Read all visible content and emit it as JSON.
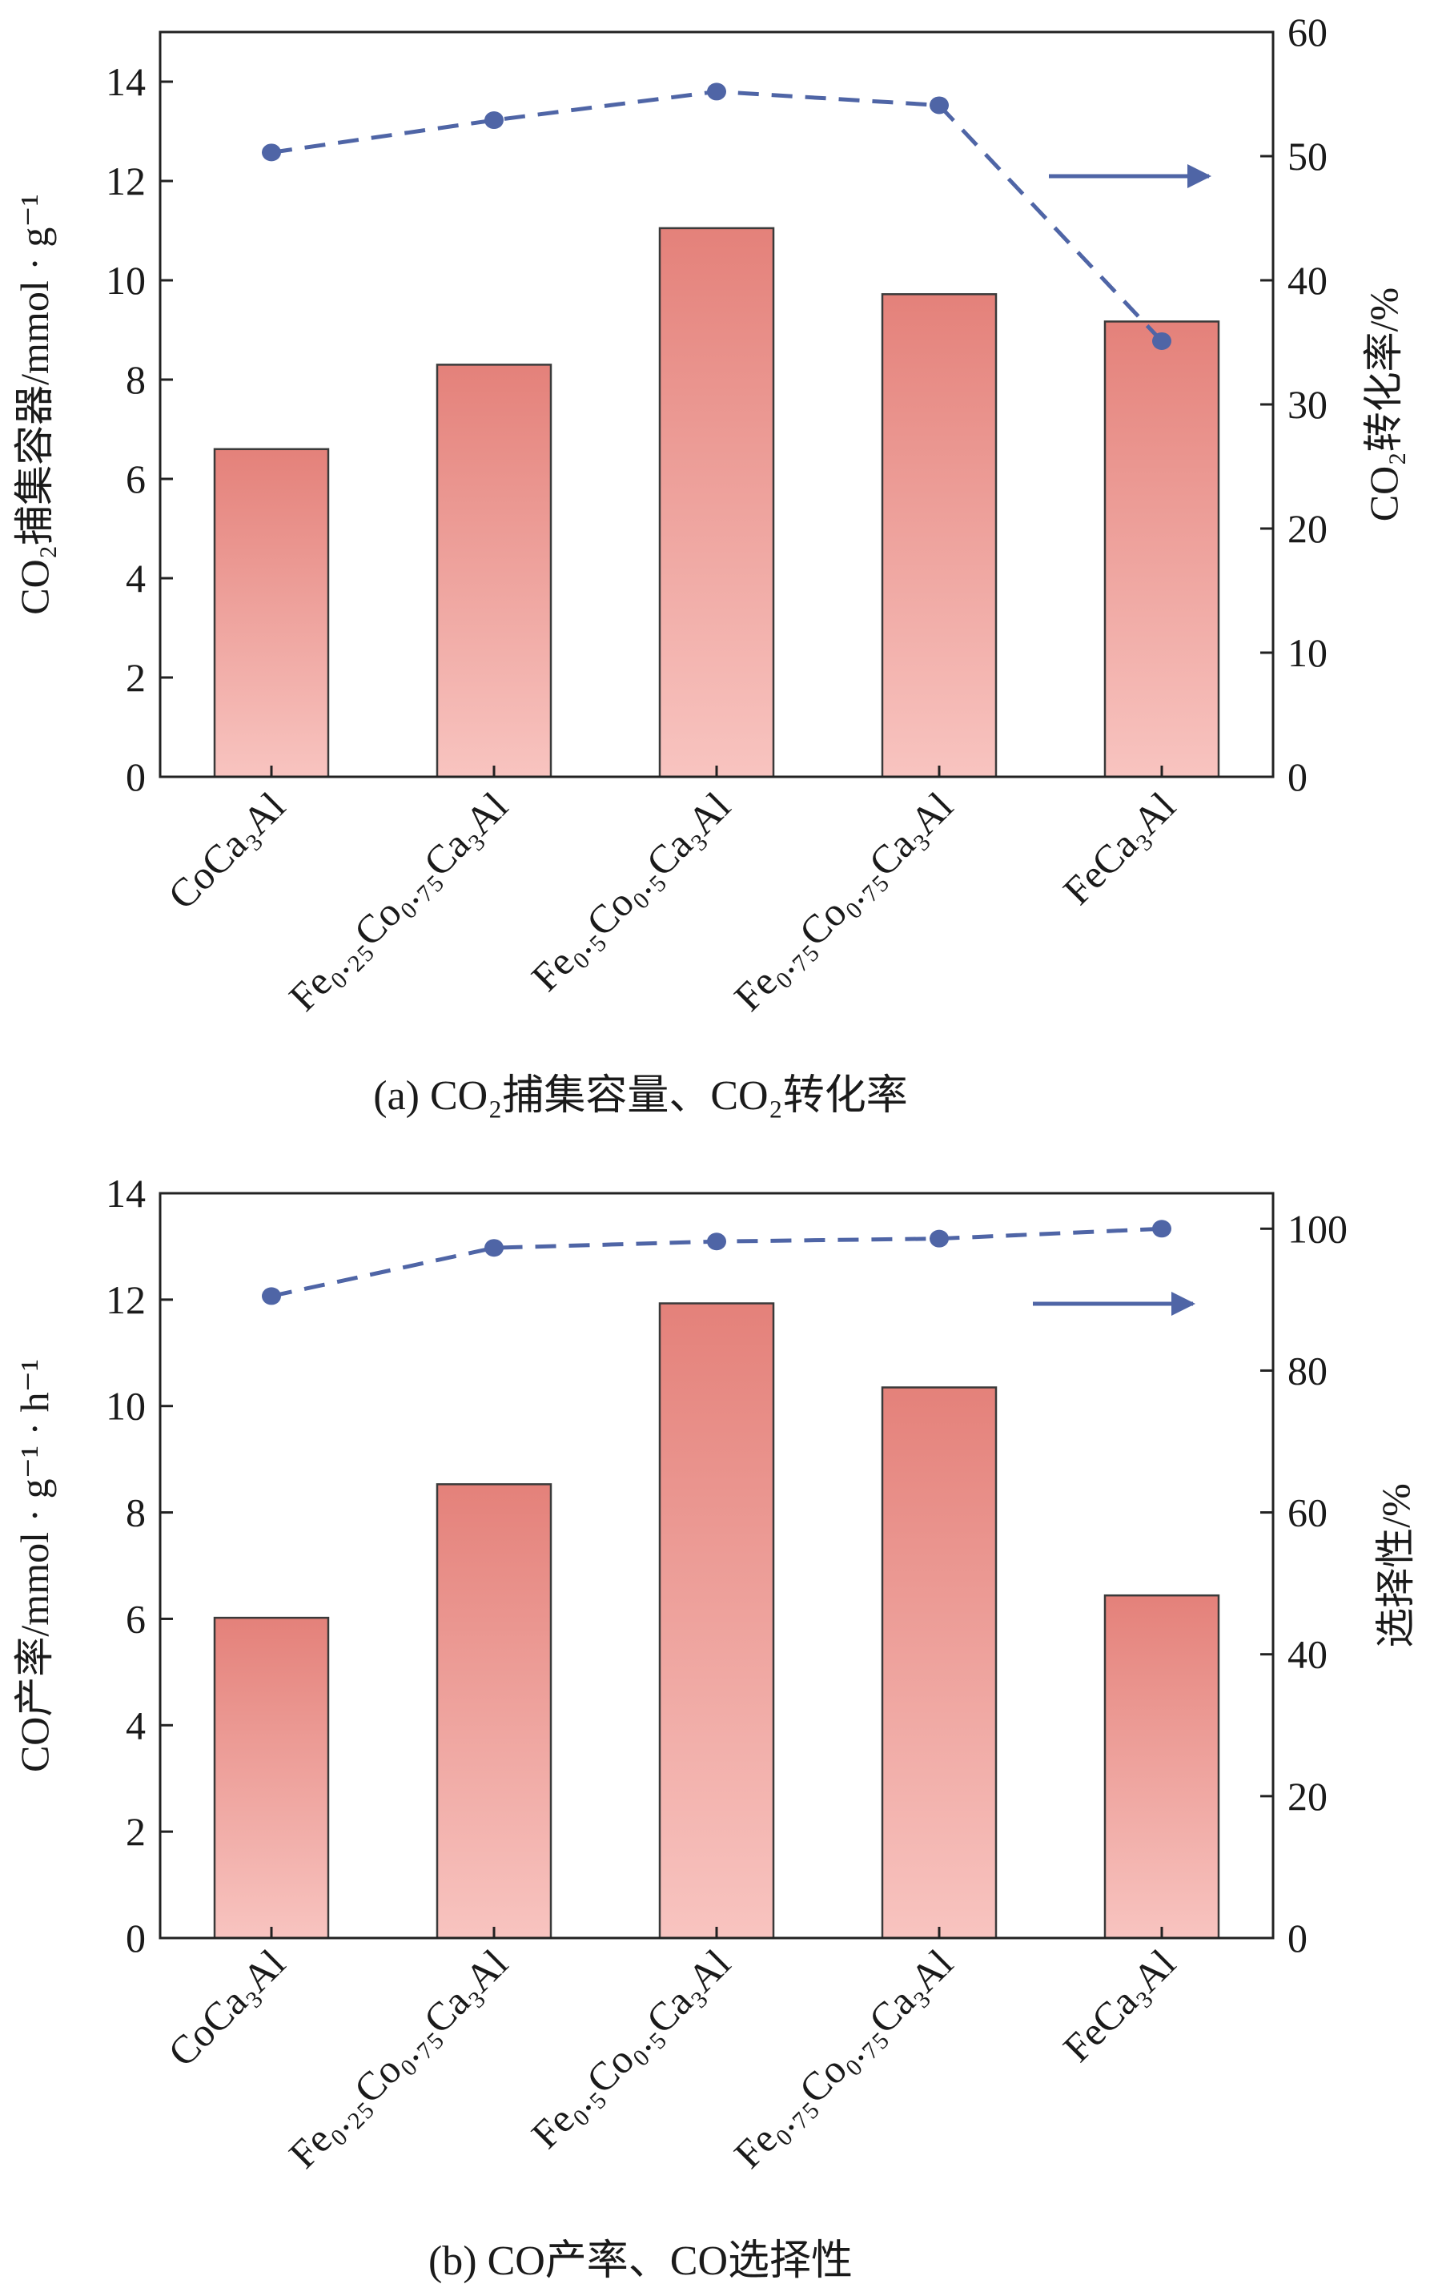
{
  "colors": {
    "bar_top": "#e4817a",
    "bar_bottom": "#f8c4c0",
    "bar_edge": "#3a3a3a",
    "line": "#4f65a6",
    "axis": "#222222"
  },
  "chart_data": [
    {
      "type": "bar",
      "panel": "a",
      "caption": "(a) CO₂捕集容量、CO₂转化率",
      "categories": [
        "CoCa₃Al",
        "Fe₀.₂₅Co₀.₇₅Ca₃Al",
        "Fe₀.₅Co₀.₅Ca₃Al",
        "Fe₀.₇₅Co₀.₇₅Ca₃Al",
        "FeCa₃Al"
      ],
      "ylabel": "CO₂捕集容器/mmol · g⁻¹",
      "ylim": [
        0,
        15
      ],
      "yticks": [
        0,
        2,
        4,
        6,
        8,
        10,
        12,
        14
      ],
      "values": [
        6.6,
        8.3,
        11.05,
        9.72,
        9.17
      ],
      "y2label": "CO₂转化率/%",
      "y2lim": [
        0,
        60
      ],
      "y2ticks": [
        0,
        10,
        20,
        30,
        40,
        50,
        60
      ],
      "line_values": [
        50.3,
        52.9,
        55.2,
        54.1,
        35.1
      ]
    },
    {
      "type": "bar",
      "panel": "b",
      "caption": "(b) CO产率、CO选择性",
      "categories": [
        "CoCa₃Al",
        "Fe₀.₂₅Co₀.₇₅Ca₃Al",
        "Fe₀.₅Co₀.₅Ca₃Al",
        "Fe₀.₇₅Co₀.₇₅Ca₃Al",
        "FeCa₃Al"
      ],
      "ylabel": "CO产率/mmol · g⁻¹ · h⁻¹",
      "ylim": [
        0,
        14
      ],
      "yticks": [
        0,
        2,
        4,
        6,
        8,
        10,
        12,
        14
      ],
      "values": [
        6.02,
        8.53,
        11.93,
        10.35,
        6.44
      ],
      "y2label": "选择性/%",
      "y2lim": [
        0,
        105
      ],
      "y2ticks": [
        0,
        20,
        40,
        60,
        80,
        100
      ],
      "line_values": [
        90.5,
        97.3,
        98.2,
        98.6,
        100.0
      ]
    }
  ]
}
